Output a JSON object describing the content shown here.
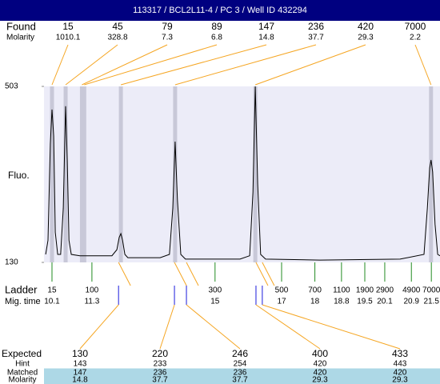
{
  "chart_data": {
    "type": "line",
    "title": "113317 / BCL2L11-4 / PC 3 / Well ID 432294",
    "ylabel": "Fluo.",
    "ylim": [
      130,
      503
    ],
    "yticks": [
      130,
      503
    ],
    "xlim": [
      9.86,
      21.76
    ],
    "plot_color": "#ececf8",
    "line_color": "#000000",
    "found": {
      "label": "Found",
      "molarity_label": "Molarity",
      "sizes": [
        15,
        45,
        79,
        89,
        147,
        236,
        420,
        7000
      ],
      "molarity": [
        1010.1,
        328.8,
        7.3,
        6.8,
        14.8,
        37.7,
        29.3,
        2.2
      ],
      "times": [
        10.1,
        10.51,
        11.0,
        11.07,
        12.17,
        13.8,
        16.21,
        21.49
      ],
      "color": "#f5a623",
      "band_color": "#c8c8d8"
    },
    "ladder": {
      "label": "Ladder",
      "time_label": "Mig. time",
      "sizes": [
        15,
        100,
        300,
        500,
        700,
        1100,
        1900,
        2900,
        4900,
        7000
      ],
      "times": [
        10.1,
        11.3,
        15,
        17,
        18,
        18.8,
        19.5,
        20.1,
        20.9,
        21.5
      ],
      "color": "#228b22"
    },
    "expected": {
      "times": [
        12.1,
        13.78,
        14.14,
        16.23,
        16.42
      ],
      "color": "#1a1adc",
      "line_color": "#f5a623"
    },
    "table": [
      {
        "label": "Expected",
        "values": [
          130,
          220,
          246,
          400,
          433
        ]
      },
      {
        "label": "Hint",
        "values": [
          143,
          233,
          254,
          420,
          443
        ]
      },
      {
        "label": "Matched",
        "values": [
          147,
          236,
          236,
          420,
          420
        ],
        "band_color": "#add8e6"
      },
      {
        "label": "Molarity",
        "values": [
          14.8,
          37.7,
          37.7,
          29.3,
          29.3
        ],
        "band_color": "#add8e6"
      }
    ],
    "x": [
      9.91,
      9.98,
      10.05,
      10.1,
      10.15,
      10.2,
      10.27,
      10.36,
      10.44,
      10.51,
      10.56,
      10.61,
      10.68,
      10.94,
      11.9,
      12.05,
      12.12,
      12.17,
      12.22,
      12.29,
      12.38,
      13.35,
      13.63,
      13.73,
      13.8,
      13.87,
      13.97,
      14.11,
      15.75,
      16.04,
      16.14,
      16.21,
      16.28,
      16.37,
      16.52,
      18.15,
      20.56,
      21.28,
      21.38,
      21.45,
      21.49,
      21.54,
      21.61,
      21.69,
      21.76
    ],
    "values": [
      147,
      177,
      381,
      454,
      398,
      194,
      147,
      147,
      245,
      461,
      347,
      177,
      147,
      144,
      144,
      157,
      183,
      191,
      177,
      147,
      140,
      140,
      147,
      245,
      386,
      262,
      147,
      137,
      137,
      144,
      279,
      503,
      296,
      147,
      137,
      135,
      137,
      147,
      245,
      330,
      347,
      322,
      211,
      147,
      144
    ]
  }
}
